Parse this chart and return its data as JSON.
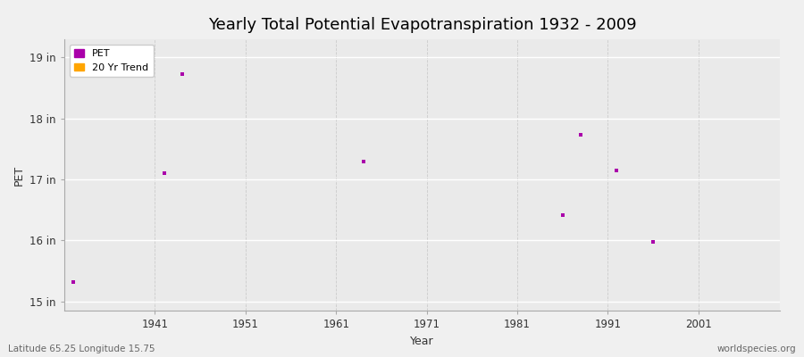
{
  "title": "Yearly Total Potential Evapotranspiration 1932 - 2009",
  "xlabel": "Year",
  "ylabel": "PET",
  "background_color": "#f0f0f0",
  "plot_bg_color": "#eaeaea",
  "grid_color_h": "#ffffff",
  "grid_color_v": "#cccccc",
  "xlim": [
    1931,
    2010
  ],
  "ylim": [
    14.85,
    19.3
  ],
  "ytick_labels": [
    "15 in",
    "16 in",
    "17 in",
    "18 in",
    "19 in"
  ],
  "ytick_values": [
    15.0,
    16.0,
    17.0,
    18.0,
    19.0
  ],
  "xtick_values": [
    1941,
    1951,
    1961,
    1971,
    1981,
    1991,
    2001
  ],
  "pet_color": "#aa00aa",
  "trend_color": "#ffa500",
  "pet_marker": "s",
  "pet_markersize": 3,
  "data_points": [
    {
      "year": 1932,
      "value": 15.32
    },
    {
      "year": 1944,
      "value": 18.73
    },
    {
      "year": 1942,
      "value": 17.1
    },
    {
      "year": 1964,
      "value": 17.3
    },
    {
      "year": 1986,
      "value": 16.42
    },
    {
      "year": 1988,
      "value": 17.73
    },
    {
      "year": 1992,
      "value": 17.15
    },
    {
      "year": 1996,
      "value": 15.98
    }
  ],
  "footer_left": "Latitude 65.25 Longitude 15.75",
  "footer_right": "worldspecies.org",
  "title_fontsize": 13,
  "axis_label_fontsize": 9,
  "tick_fontsize": 8.5,
  "footer_fontsize": 7.5,
  "legend_fontsize": 8
}
